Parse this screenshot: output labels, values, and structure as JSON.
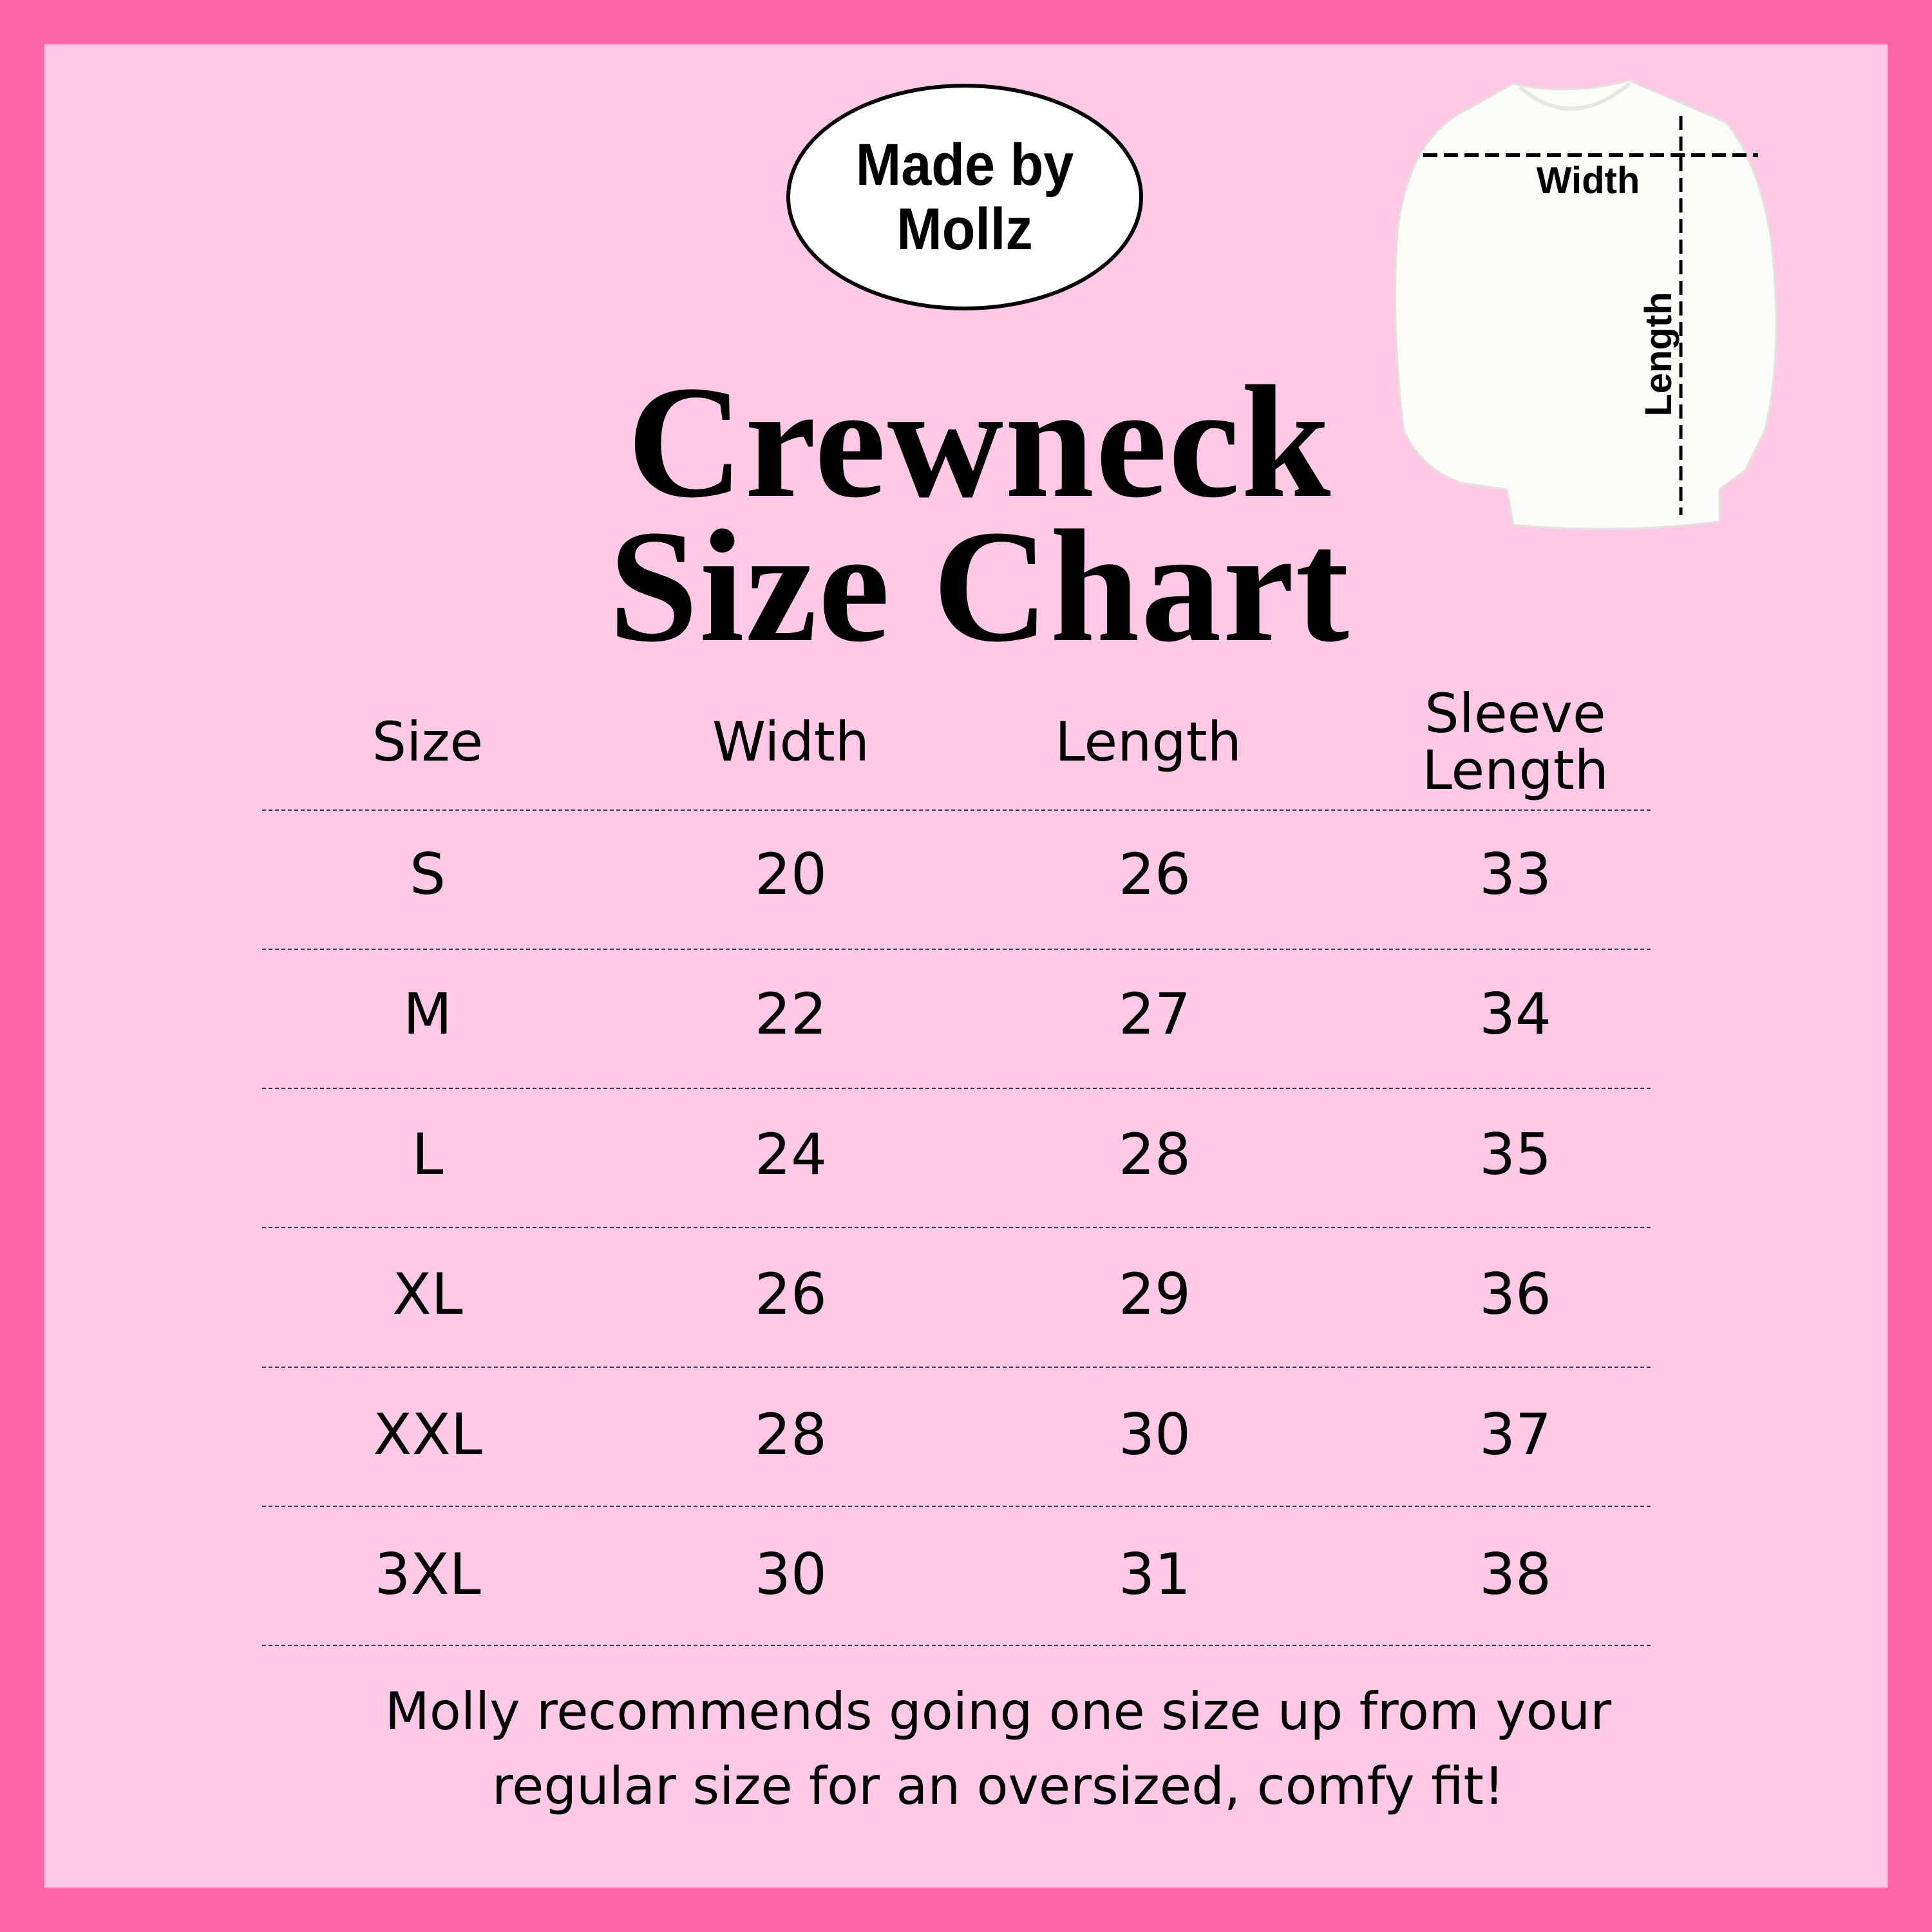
{
  "colors": {
    "border": "#ff66aa",
    "background": "#ffc8e4"
  },
  "logo": {
    "line1": "Made by",
    "line2": "Mollz"
  },
  "title": {
    "line1": "Crewneck",
    "line2": "Size Chart"
  },
  "diagram": {
    "width_label": "Width",
    "length_label": "Length"
  },
  "table": {
    "headers": [
      "Size",
      "Width",
      "Length",
      "Sleeve Length"
    ],
    "rows": [
      [
        "S",
        "20",
        "26",
        "33"
      ],
      [
        "M",
        "22",
        "27",
        "34"
      ],
      [
        "L",
        "24",
        "28",
        "35"
      ],
      [
        "XL",
        "26",
        "29",
        "36"
      ],
      [
        "XXL",
        "28",
        "30",
        "37"
      ],
      [
        "3XL",
        "30",
        "31",
        "38"
      ]
    ]
  },
  "note": {
    "line1": "Molly recommends going one size up from your",
    "line2": "regular size for an oversized, comfy fit!"
  }
}
